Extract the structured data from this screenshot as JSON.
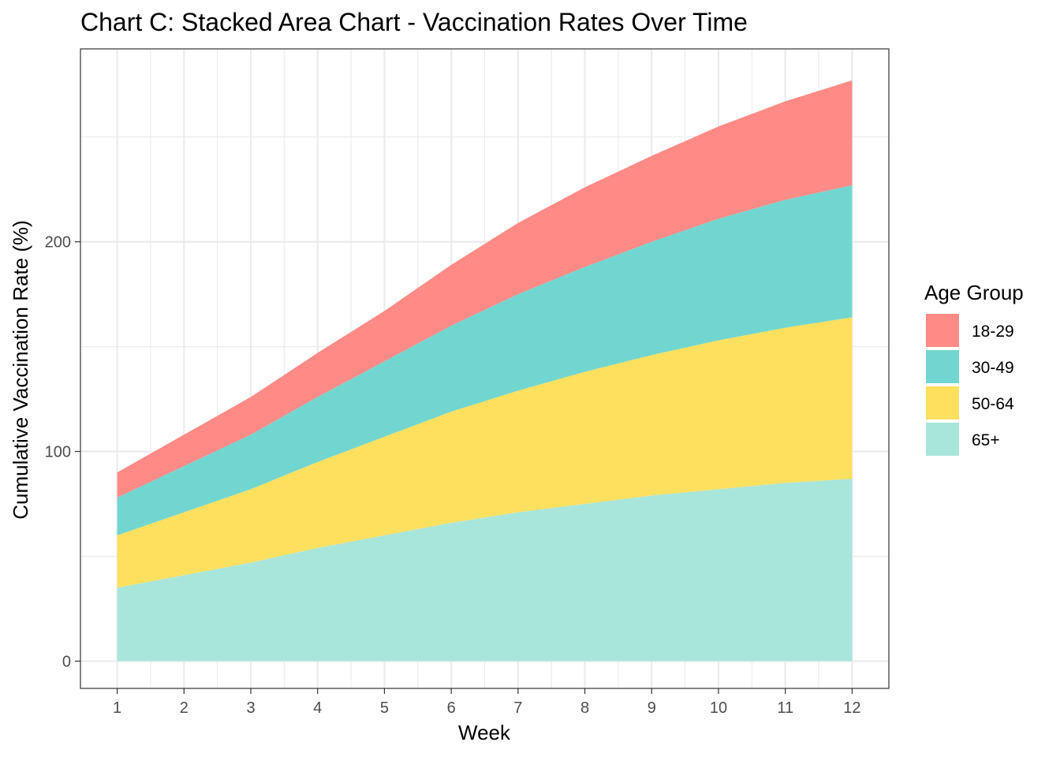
{
  "chart_data": {
    "type": "area",
    "stacked": true,
    "title": "Chart C: Stacked Area Chart - Vaccination Rates Over Time",
    "xlabel": "Week",
    "ylabel": "Cumulative Vaccination Rate (%)",
    "x": [
      1,
      2,
      3,
      4,
      5,
      6,
      7,
      8,
      9,
      10,
      11,
      12
    ],
    "x_ticks": [
      "1",
      "2",
      "3",
      "4",
      "5",
      "6",
      "7",
      "8",
      "9",
      "10",
      "11",
      "12"
    ],
    "xlim": [
      0.45,
      12.55
    ],
    "y_ticks": [
      0,
      100,
      200
    ],
    "ylim": [
      -13,
      292
    ],
    "grid": true,
    "legend_title": "Age Group",
    "legend_position": "right",
    "series": [
      {
        "name": "65+",
        "color": "#A8E6DC",
        "values": [
          35,
          41,
          47,
          54,
          60,
          66,
          71,
          75,
          79,
          82,
          85,
          87
        ]
      },
      {
        "name": "50-64",
        "color": "#FFDF5E",
        "values": [
          25,
          30,
          35,
          41,
          47,
          53,
          58,
          63,
          67,
          71,
          74,
          77
        ]
      },
      {
        "name": "30-49",
        "color": "#72D6D0",
        "values": [
          18,
          22,
          26,
          31,
          36,
          41,
          46,
          50,
          54,
          58,
          61,
          63
        ]
      },
      {
        "name": "18-29",
        "color": "#FF8A86",
        "values": [
          12,
          15,
          18,
          21,
          24,
          29,
          34,
          38,
          41,
          44,
          47,
          50
        ]
      }
    ],
    "legend_order": [
      "18-29",
      "30-49",
      "50-64",
      "65+"
    ]
  }
}
